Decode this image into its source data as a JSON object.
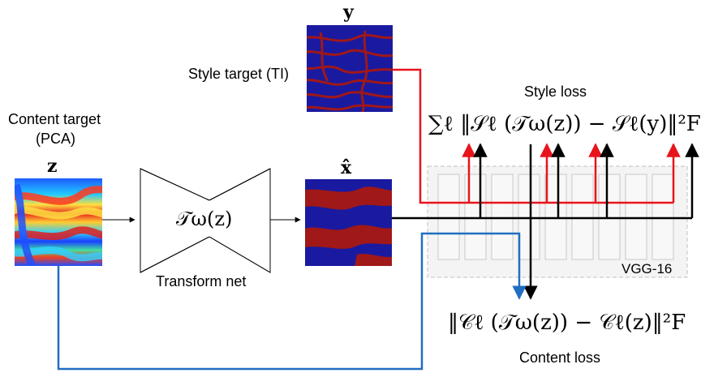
{
  "labels": {
    "style_target": "Style target (TI)",
    "content_target_line1": "Content target",
    "content_target_line2": "(PCA)",
    "transform_net": "Transform net",
    "vgg": "VGG-16",
    "style_loss": "Style loss",
    "content_loss": "Content loss"
  },
  "symbols": {
    "y": "y",
    "z": "z",
    "x_hat": "x̂",
    "transform": "𝒯ω(z)",
    "style_loss_formula": "∑ℓ ‖𝒮ℓ (𝒯ω(z)) − 𝒮ℓ(y)‖²F",
    "content_loss_formula": "‖𝒞ℓ (𝒯ω(z)) − 𝒞ℓ(z)‖²F"
  },
  "colors": {
    "style_path": "#e8141c",
    "content_path": "#1f6fc0",
    "main_path": "#000000",
    "vgg_box": "#c8c8c8",
    "image_blue": "#1a1aa0",
    "image_red": "#a01818"
  }
}
